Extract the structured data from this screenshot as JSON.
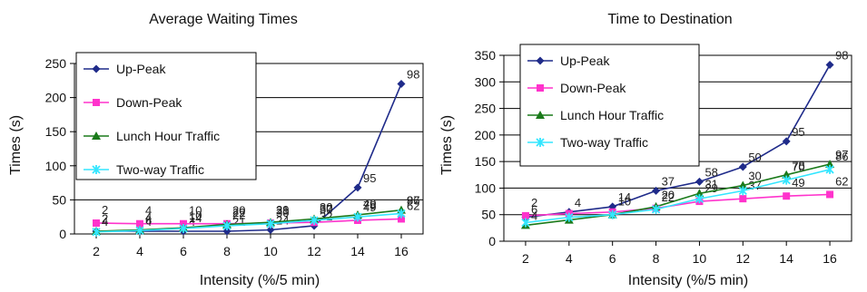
{
  "chart_data": [
    {
      "type": "line",
      "title": "Average Waiting Times",
      "xlabel": "Intensity (%/5 min)",
      "ylabel": "Times (s)",
      "x": [
        2,
        4,
        6,
        8,
        10,
        12,
        14,
        16
      ],
      "xlim": [
        1,
        17
      ],
      "ylim": [
        0,
        250
      ],
      "yticks": [
        0,
        50,
        100,
        150,
        200,
        250
      ],
      "grid": true,
      "legend": "top-left",
      "series": [
        {
          "name": "Up-Peak",
          "color": "#1f2b8a",
          "marker": "diamond",
          "values": [
            4,
            4,
            4,
            4,
            6,
            12,
            68,
            220
          ],
          "labels": [
            "4",
            "4",
            "4",
            "21",
            "24",
            "32",
            "95",
            "98"
          ]
        },
        {
          "name": "Down-Peak",
          "color": "#ff33cc",
          "marker": "square",
          "values": [
            16,
            15,
            15,
            15,
            16,
            17,
            20,
            22
          ],
          "labels": [
            "2",
            "4",
            "10",
            "20",
            "29",
            "37",
            "49",
            "62"
          ]
        },
        {
          "name": "Lunch Hour Traffic",
          "color": "#1a7a1a",
          "marker": "triangle",
          "values": [
            4,
            6,
            9,
            14,
            17,
            22,
            28,
            35
          ],
          "labels": [
            "4",
            "6",
            "14",
            "22",
            "30",
            "50",
            "78",
            "97"
          ]
        },
        {
          "name": "Two-way Traffic",
          "color": "#33e6ff",
          "marker": "x",
          "values": [
            3,
            5,
            8,
            12,
            15,
            20,
            25,
            30
          ],
          "labels": [
            "2",
            "4",
            "10",
            "22",
            "31",
            "30",
            "40",
            "86"
          ]
        }
      ]
    },
    {
      "type": "line",
      "title": "Time to Destination",
      "xlabel": "Intensity (%/5 min)",
      "ylabel": "Times (s)",
      "x": [
        2,
        4,
        6,
        8,
        10,
        12,
        14,
        16
      ],
      "xlim": [
        1,
        17
      ],
      "ylim": [
        0,
        350
      ],
      "yticks": [
        0,
        50,
        100,
        150,
        200,
        250,
        300,
        350
      ],
      "grid": true,
      "legend": "top-left",
      "series": [
        {
          "name": "Up-Peak",
          "color": "#1f2b8a",
          "marker": "diamond",
          "values": [
            45,
            55,
            65,
            95,
            112,
            140,
            188,
            332
          ],
          "labels": [
            "",
            "4",
            "14",
            "37",
            "58",
            "50",
            "95",
            "98"
          ]
        },
        {
          "name": "Down-Peak",
          "color": "#ff33cc",
          "marker": "square",
          "values": [
            48,
            52,
            55,
            62,
            75,
            80,
            85,
            88
          ],
          "labels": [
            "2",
            "",
            "",
            "20",
            "29",
            "37",
            "49",
            "62"
          ]
        },
        {
          "name": "Lunch Hour Traffic",
          "color": "#1a7a1a",
          "marker": "triangle",
          "values": [
            30,
            40,
            50,
            65,
            90,
            105,
            125,
            145
          ],
          "labels": [
            "4",
            "",
            "",
            "22",
            "31",
            "30",
            "78",
            "97"
          ]
        },
        {
          "name": "Two-way Traffic",
          "color": "#33e6ff",
          "marker": "x",
          "values": [
            35,
            45,
            50,
            60,
            80,
            95,
            115,
            135
          ],
          "labels": [
            "6",
            "",
            "10",
            "",
            "",
            "",
            "70",
            "86"
          ]
        }
      ]
    }
  ]
}
